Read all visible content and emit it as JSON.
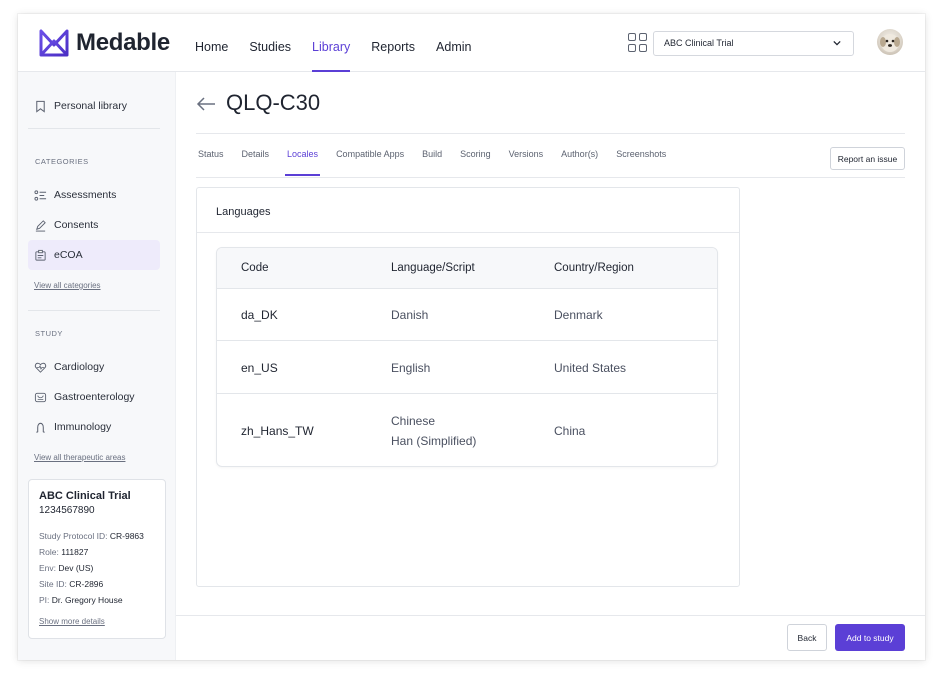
{
  "brand": {
    "name": "Medable",
    "color": "#5b3fd6"
  },
  "nav": [
    {
      "label": "Home",
      "active": false
    },
    {
      "label": "Studies",
      "active": false
    },
    {
      "label": "Library",
      "active": true
    },
    {
      "label": "Reports",
      "active": false
    },
    {
      "label": "Admin",
      "active": false
    }
  ],
  "header": {
    "study_select": "ABC Clinical Trial"
  },
  "sidebar": {
    "personal_library": "Personal library",
    "categories_heading": "CATEGORIES",
    "categories": [
      {
        "label": "Assessments",
        "icon": "list-icon"
      },
      {
        "label": "Consents",
        "icon": "pen-icon"
      },
      {
        "label": "eCOA",
        "icon": "clipboard-icon",
        "active": true
      }
    ],
    "view_all_categories": "View all categories",
    "study_heading": "STUDY",
    "study_areas": [
      {
        "label": "Cardiology",
        "icon": "heart-icon"
      },
      {
        "label": "Gastroenterology",
        "icon": "stomach-icon"
      },
      {
        "label": "Immunology",
        "icon": "antibody-icon"
      }
    ],
    "view_all_areas": "View all therapeutic areas",
    "trial": {
      "title": "ABC Clinical Trial",
      "number": "1234567890",
      "protocol_label": "Study Protocol ID: ",
      "protocol_value": "CR-9863",
      "role_label": "Role: ",
      "role_value": "111827",
      "env_label": "Env: ",
      "env_value": "Dev (US)",
      "site_label": "Site ID: ",
      "site_value": "CR-2896",
      "pi_label": "PI: ",
      "pi_value": "Dr. Gregory House",
      "more": "Show more details"
    }
  },
  "main": {
    "title": "QLQ-C30",
    "tabs": [
      {
        "label": "Status"
      },
      {
        "label": "Details"
      },
      {
        "label": "Locales",
        "active": true
      },
      {
        "label": "Compatible Apps"
      },
      {
        "label": "Build"
      },
      {
        "label": "Scoring"
      },
      {
        "label": "Versions"
      },
      {
        "label": "Author(s)"
      },
      {
        "label": "Screenshots"
      }
    ],
    "report_issue": "Report an issue",
    "panel_title": "Languages",
    "table": {
      "headers": [
        "Code",
        "Language/Script",
        "Country/Region"
      ],
      "rows": [
        {
          "code": "da_DK",
          "language": "Danish",
          "language2": "",
          "country": "Denmark"
        },
        {
          "code": "en_US",
          "language": "English",
          "language2": "",
          "country": "United States"
        },
        {
          "code": "zh_Hans_TW",
          "language": "Chinese",
          "language2": "Han (Simplified)",
          "country": "China"
        }
      ]
    },
    "back_label": "Back",
    "add_label": "Add to study"
  }
}
